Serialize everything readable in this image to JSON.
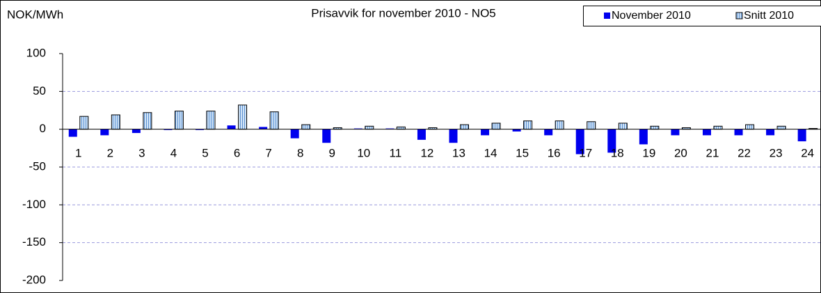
{
  "chart_data": {
    "type": "bar",
    "title": "Prisavvik for november 2010 - NO5",
    "y_label": "NOK/MWh",
    "categories": [
      "1",
      "2",
      "3",
      "4",
      "5",
      "6",
      "7",
      "8",
      "9",
      "10",
      "11",
      "12",
      "13",
      "14",
      "15",
      "16",
      "17",
      "18",
      "19",
      "20",
      "21",
      "22",
      "23",
      "24"
    ],
    "series": [
      {
        "name": "November 2010",
        "color": "#0000ee",
        "values": [
          -10,
          -8,
          -5,
          -1,
          -1,
          5,
          3,
          -12,
          -18,
          1,
          1,
          -14,
          -18,
          -8,
          -3,
          -8,
          -33,
          -31,
          -20,
          -8,
          -8,
          -8,
          -8,
          -16
        ]
      },
      {
        "name": "Snitt 2010",
        "color": "#9ec6ee",
        "values": [
          17,
          19,
          22,
          24,
          24,
          32,
          23,
          6,
          2,
          4,
          3,
          2,
          6,
          8,
          11,
          11,
          10,
          8,
          4,
          2,
          4,
          6,
          4,
          1
        ]
      }
    ],
    "ylim": [
      -200,
      100
    ],
    "yticks": [
      -200,
      -150,
      -100,
      -50,
      0,
      50,
      100
    ],
    "grid": true
  }
}
